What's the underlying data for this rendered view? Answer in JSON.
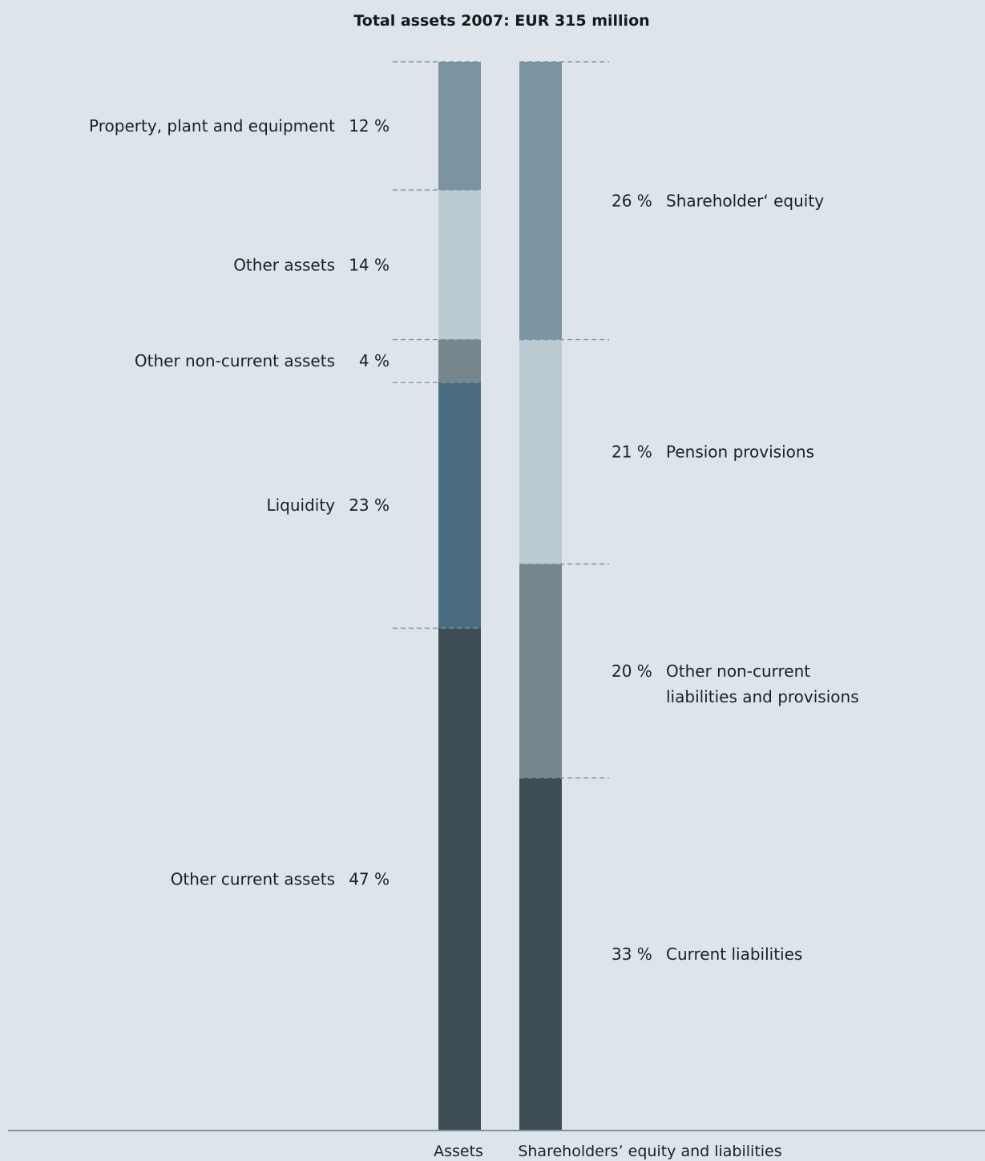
{
  "chart_data": {
    "type": "bar",
    "stacked": true,
    "title": "Total assets 2007: EUR 315 million",
    "unit": "%",
    "categories": [
      "Assets",
      "Shareholders’ equity and liabilities"
    ],
    "stacks": [
      {
        "category": "Assets",
        "segments": [
          {
            "name": "Property, plant and equipment",
            "value": 12,
            "label": "12 %",
            "color": "#7c93a1"
          },
          {
            "name": "Other assets",
            "value": 14,
            "label": "14 %",
            "color": "#bccad1"
          },
          {
            "name": "Other non-current assets",
            "value": 4,
            "label": "4 %",
            "color": "#77868d"
          },
          {
            "name": "Liquidity",
            "value": 23,
            "label": "23 %",
            "color": "#4a6e80"
          },
          {
            "name": "Other current assets",
            "value": 47,
            "label": "47 %",
            "color": "#3e4d54"
          }
        ]
      },
      {
        "category": "Shareholders’ equity and liabilities",
        "segments": [
          {
            "name": "Shareholder‘ equity",
            "value": 26,
            "label": "26 %",
            "color": "#7c93a1"
          },
          {
            "name": "Pension provisions",
            "value": 21,
            "label": "21 %",
            "color": "#bccad1"
          },
          {
            "name": "Other non-current liabilities and provisions",
            "name_lines": [
              "Other non-current",
              "liabilities and provisions"
            ],
            "value": 20,
            "label": "20 %",
            "color": "#77868d"
          },
          {
            "name": "Current liabilities",
            "value": 33,
            "label": "33 %",
            "color": "#3e4d54"
          }
        ]
      }
    ]
  }
}
